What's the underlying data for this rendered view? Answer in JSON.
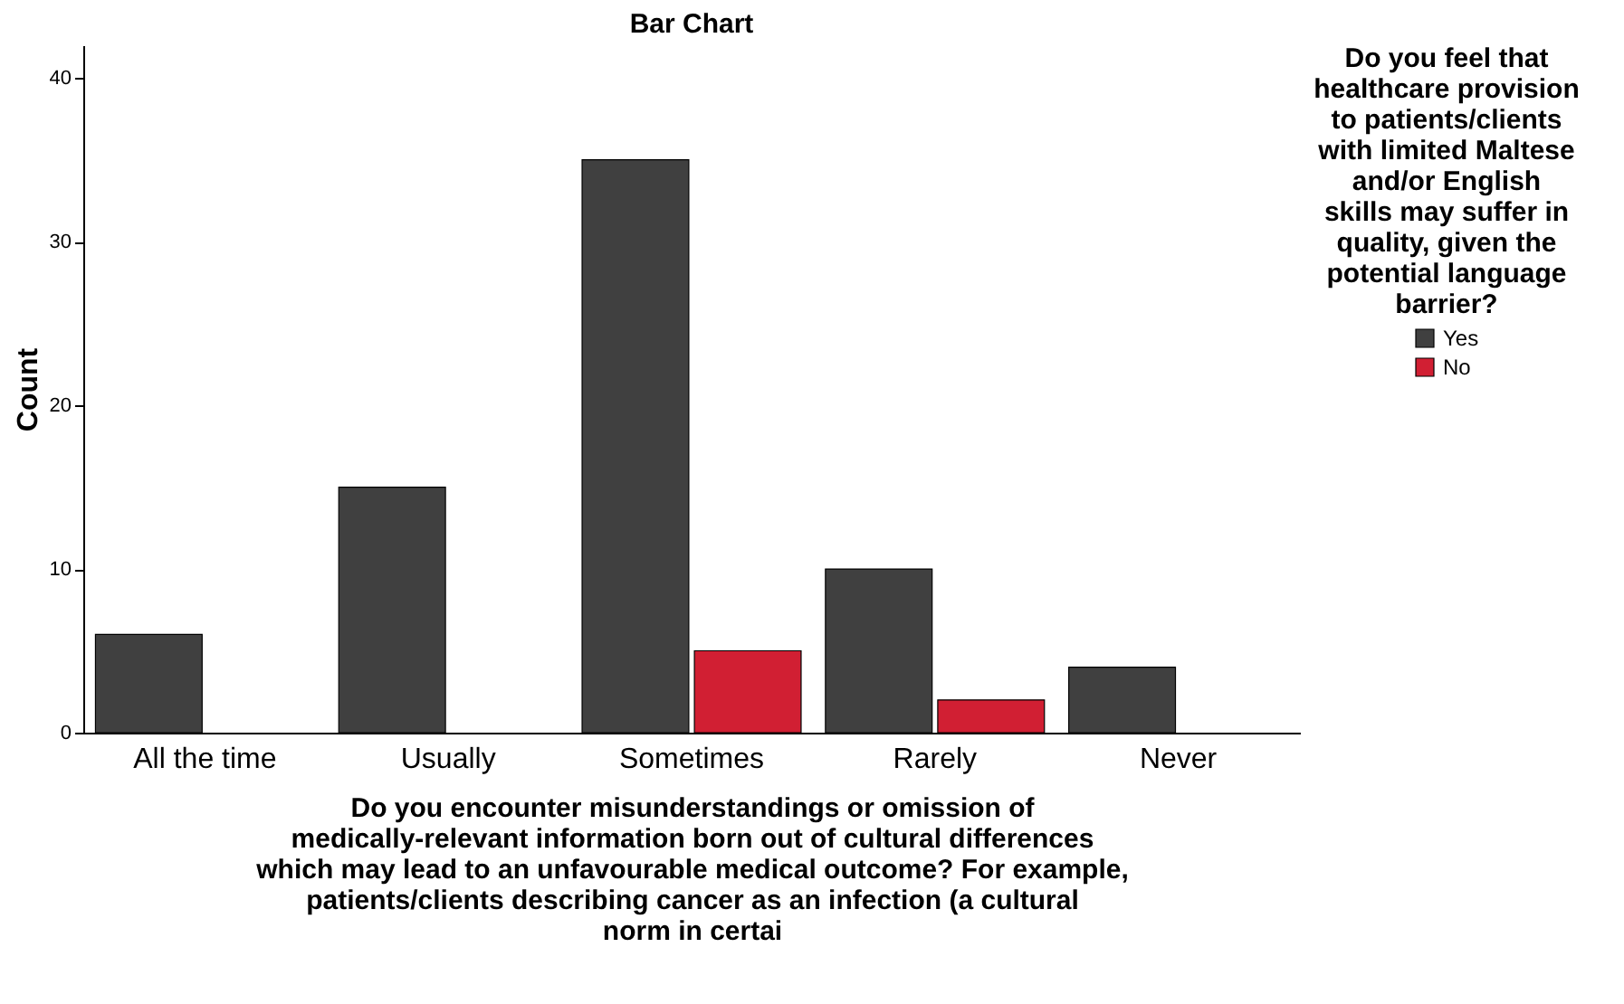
{
  "chart_data": {
    "type": "bar",
    "title": "Bar Chart",
    "categories": [
      "All the time",
      "Usually",
      "Sometimes",
      "Rarely",
      "Never"
    ],
    "series": [
      {
        "name": "Yes",
        "color": "#404040",
        "values": [
          6,
          15,
          35,
          10,
          4
        ]
      },
      {
        "name": "No",
        "color": "#d11f33",
        "values": [
          null,
          null,
          5,
          2,
          null
        ]
      }
    ],
    "xlabel": "Do you encounter misunderstandings or omission of medically-relevant information born out of cultural differences which may lead to an unfavourable medical outcome? For example, patients/clients describing cancer as an infection (a cultural norm in certai",
    "ylabel": "Count",
    "legend_title": "Do you feel that healthcare provision to patients/clients with limited Maltese and/or English skills may suffer in quality, given the potential language barrier?",
    "ylim": [
      0,
      42
    ],
    "yticks": [
      0,
      10,
      20,
      30,
      40
    ],
    "grid": false,
    "legend": "right"
  }
}
